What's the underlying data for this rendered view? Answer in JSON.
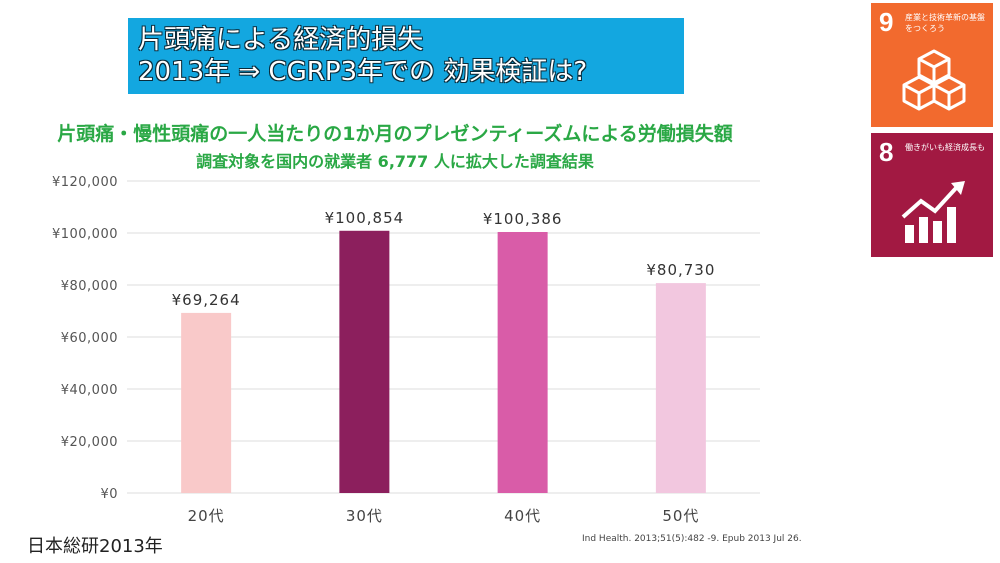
{
  "header": {
    "line1": "片頭痛による経済的損失",
    "line2": "2013年 ⇒ CGRP3年での 効果検証は?"
  },
  "subtitle1": "片頭痛・慢性頭痛の一人当たりの1か月のプレゼンティーズムによる労働損失額",
  "subtitle2": "調査対象を国内の就業者 6,777 人に拡大した調査結果",
  "footer": {
    "source_left": "日本総研2013年",
    "citation": "Ind Health. 2013;51(5):482 -9. Epub 2013 Jul 26."
  },
  "sdg_badges": [
    {
      "number": "9",
      "text": "産業と技術革新の基盤をつくろう",
      "color": "#f26a2e",
      "icon": "cubes-icon"
    },
    {
      "number": "8",
      "text": "働きがいも経済成長も",
      "color": "#a21942",
      "icon": "growth-chart-icon"
    }
  ],
  "chart_data": {
    "type": "bar",
    "categories": [
      "20代",
      "30代",
      "40代",
      "50代"
    ],
    "values": [
      69264,
      100854,
      100386,
      80730
    ],
    "value_labels": [
      "¥69,264",
      "¥100,854",
      "¥100,386",
      "¥80,730"
    ],
    "bar_colors": [
      "#f9c9c9",
      "#8c1f5d",
      "#d95ca8",
      "#f2c7df"
    ],
    "ylim": [
      0,
      120000
    ],
    "y_ticks": [
      0,
      20000,
      40000,
      60000,
      80000,
      100000,
      120000
    ],
    "y_tick_labels": [
      "¥0",
      "¥20,000",
      "¥40,000",
      "¥60,000",
      "¥80,000",
      "¥100,000",
      "¥120,000"
    ],
    "grid": true,
    "xlabel": "",
    "ylabel": ""
  }
}
